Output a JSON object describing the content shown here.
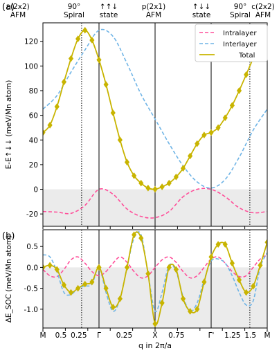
{
  "panel_labels": [
    "(a)",
    "(b)"
  ],
  "x_ticks": [
    "M̄",
    "0.5",
    "0.25",
    "Γ̄",
    "0.25",
    "X̄",
    "0.75",
    "Γ̄'",
    "1.25",
    "1.5",
    "M̄"
  ],
  "x_axis_label": "q in 2π/a",
  "state_labels": [
    {
      "line1": "c(2x2)",
      "line2": "AFM"
    },
    {
      "line1": "90°",
      "line2": "Spiral"
    },
    {
      "line1": "↑↑↓",
      "line2": "state"
    },
    {
      "line1": "p(2x1)",
      "line2": "AFM"
    },
    {
      "line1": "↑↓↓",
      "line2": "state"
    },
    {
      "line1": "90°",
      "line2": "Spiral"
    },
    {
      "line1": "c(2x2)",
      "line2": "AFM"
    }
  ],
  "colors": {
    "intralayer": "#ff4f9a",
    "interlayer": "#6fb4e6",
    "total": "#c8b400",
    "shade": "#ebebeb"
  },
  "chart_data": [
    {
      "type": "line",
      "panel": "(a)",
      "ylabel": "E-E↑↓↓ (meV/Mn atom)",
      "ylim": [
        -30,
        135
      ],
      "yticks": [
        -20,
        0,
        20,
        40,
        60,
        80,
        100,
        120
      ],
      "x_range": [
        0,
        4
      ],
      "grid": false,
      "legend_position": "top-right",
      "solid_vlines": [
        1,
        2,
        3
      ],
      "dotted_vlines": [
        0.69,
        3.69
      ],
      "series": [
        {
          "name": "Intralayer",
          "style": "dashed",
          "x": [
            0,
            0.25,
            0.5,
            0.75,
            1.0,
            1.25,
            1.5,
            1.75,
            2.0,
            2.25,
            2.5,
            2.75,
            3.0,
            3.25,
            3.5,
            3.75,
            4.0
          ],
          "y": [
            -18,
            -18.5,
            -19.5,
            -13,
            0,
            -4,
            -16,
            -22,
            -23,
            -18,
            -6,
            0,
            0,
            -6,
            -15,
            -19,
            -18
          ]
        },
        {
          "name": "Interlayer",
          "style": "dashed",
          "x": [
            0,
            0.25,
            0.5,
            0.75,
            1.0,
            1.25,
            1.5,
            1.75,
            2.0,
            2.25,
            2.5,
            2.75,
            3.0,
            3.25,
            3.5,
            3.75,
            4.0
          ],
          "y": [
            65,
            76,
            95,
            113,
            129,
            124,
            102,
            77,
            57,
            37,
            19,
            6,
            1,
            8,
            26,
            48,
            65
          ]
        },
        {
          "name": "Total",
          "style": "solid-with-markers",
          "x": [
            0,
            0.125,
            0.25,
            0.375,
            0.5,
            0.625,
            0.75,
            0.875,
            1.0,
            1.125,
            1.25,
            1.375,
            1.5,
            1.625,
            1.75,
            1.875,
            2.0,
            2.125,
            2.25,
            2.375,
            2.5,
            2.625,
            2.75,
            2.875,
            3.0,
            3.125,
            3.25,
            3.375,
            3.5,
            3.625,
            3.75,
            3.875,
            4.0
          ],
          "y": [
            46,
            52,
            67,
            87,
            106,
            122,
            129,
            121,
            105,
            85,
            62,
            40,
            22,
            11,
            5,
            1,
            0,
            2,
            5,
            10,
            17,
            27,
            37,
            44,
            46,
            50,
            58,
            68,
            80,
            93,
            106,
            115,
            122
          ],
          "x_alt": [
            0,
            0.125,
            0.25,
            0.375,
            0.5,
            0.625,
            0.75,
            0.875,
            1.0,
            1.125,
            1.25,
            1.375,
            1.5,
            1.625,
            1.75,
            1.875,
            2.0,
            2.125,
            2.25,
            2.375,
            2.5,
            2.625,
            2.75,
            2.875,
            3.0,
            3.125,
            3.25,
            3.375,
            3.5,
            3.625,
            3.75,
            3.875,
            4.0
          ],
          "y_alt": [
            46,
            52,
            67,
            87,
            106,
            122,
            129,
            121,
            105,
            85,
            62,
            40,
            22,
            11,
            5,
            1,
            0,
            2,
            5,
            10,
            17,
            27,
            37,
            44,
            46,
            50,
            58,
            68,
            80,
            93,
            106,
            115,
            122
          ]
        }
      ]
    },
    {
      "type": "line",
      "panel": "(b)",
      "ylabel": "ΔE_SOC (meV/Mn atom)",
      "ylim": [
        -1.45,
        0.9
      ],
      "yticks": [
        -1.0,
        -0.5,
        0.0,
        0.5
      ],
      "x_range": [
        0,
        4
      ],
      "grid": false,
      "solid_vlines": [
        1,
        2,
        3
      ],
      "dotted_vlines": [
        0.69,
        3.69
      ],
      "series": [
        {
          "name": "Intralayer",
          "style": "dashed",
          "x": [
            0,
            0.125,
            0.25,
            0.375,
            0.5,
            0.625,
            0.75,
            0.875,
            1.0,
            1.125,
            1.25,
            1.375,
            1.5,
            1.625,
            1.75,
            1.875,
            2.0,
            2.125,
            2.25,
            2.375,
            2.5,
            2.625,
            2.75,
            2.875,
            3.0,
            3.125,
            3.25,
            3.375,
            3.5,
            3.625,
            3.75,
            3.875,
            4.0
          ],
          "y": [
            -0.05,
            -0.2,
            -0.22,
            -0.05,
            0.18,
            0.25,
            0.1,
            -0.1,
            -0.2,
            -0.1,
            0.1,
            0.25,
            0.12,
            -0.1,
            -0.25,
            -0.2,
            0.0,
            0.18,
            0.25,
            0.12,
            -0.1,
            -0.25,
            -0.2,
            0.0,
            0.2,
            0.25,
            0.1,
            -0.1,
            -0.22,
            -0.2,
            0.0,
            0.2,
            0.3
          ]
        },
        {
          "name": "Interlayer",
          "style": "dashed",
          "x": [
            0,
            0.125,
            0.25,
            0.375,
            0.5,
            0.625,
            0.75,
            0.875,
            1.0,
            1.125,
            1.25,
            1.375,
            1.5,
            1.625,
            1.75,
            1.875,
            2.0,
            2.125,
            2.25,
            2.375,
            2.5,
            2.625,
            2.75,
            2.875,
            3.0,
            3.125,
            3.25,
            3.375,
            3.5,
            3.625,
            3.75,
            3.875,
            4.0
          ],
          "y": [
            0.3,
            0.25,
            -0.1,
            -0.6,
            -0.65,
            -0.5,
            -0.45,
            -0.4,
            0.0,
            -0.6,
            -1.05,
            -0.75,
            0.0,
            0.7,
            0.78,
            -0.15,
            -1.05,
            -0.6,
            0.05,
            -0.1,
            -0.7,
            -1.05,
            -0.85,
            -0.3,
            0.15,
            0.2,
            0.1,
            -0.2,
            -0.6,
            -0.9,
            -0.8,
            0.0,
            0.35
          ]
        },
        {
          "name": "Total",
          "style": "solid-with-markers",
          "x": [
            0,
            0.125,
            0.25,
            0.375,
            0.5,
            0.625,
            0.75,
            0.875,
            1.0,
            1.125,
            1.25,
            1.375,
            1.5,
            1.625,
            1.75,
            1.875,
            2.0,
            2.125,
            2.25,
            2.375,
            2.5,
            2.625,
            2.75,
            2.875,
            3.0,
            3.125,
            3.25,
            3.375,
            3.5,
            3.625,
            3.75,
            3.875,
            4.0
          ],
          "y": [
            0.0,
            0.05,
            -0.05,
            -0.42,
            -0.6,
            -0.5,
            -0.4,
            -0.35,
            0.0,
            -0.5,
            -0.95,
            -0.75,
            0.0,
            0.78,
            0.7,
            -0.15,
            -1.35,
            -0.85,
            0.0,
            -0.05,
            -0.75,
            -1.05,
            -1.0,
            -0.35,
            0.25,
            0.55,
            0.55,
            0.1,
            -0.3,
            -0.6,
            -0.45,
            0.05,
            0.6
          ]
        }
      ]
    }
  ]
}
